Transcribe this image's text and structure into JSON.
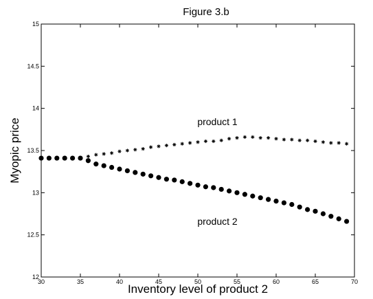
{
  "chart_data": {
    "type": "scatter",
    "title": "Figure 3.b",
    "xlabel": "Inventory level of product 2",
    "ylabel": "Myopic price",
    "xlim": [
      30,
      70
    ],
    "ylim": [
      12,
      15
    ],
    "xticks": [
      "30",
      "35",
      "40",
      "45",
      "50",
      "55",
      "60",
      "65",
      "70"
    ],
    "yticks": [
      "12",
      "12.5",
      "13",
      "13.5",
      "14",
      "14.5",
      "15"
    ],
    "grid": false,
    "annotations": [
      {
        "text": "product 1",
        "x": 52.5,
        "y": 13.8
      },
      {
        "text": "product 2",
        "x": 52.5,
        "y": 12.62
      }
    ],
    "series": [
      {
        "name": "product 1",
        "marker": "star",
        "x": [
          30,
          31,
          32,
          33,
          34,
          35,
          36,
          37,
          38,
          39,
          40,
          41,
          42,
          43,
          44,
          45,
          46,
          47,
          48,
          49,
          50,
          51,
          52,
          53,
          54,
          55,
          56,
          57,
          58,
          59,
          60,
          61,
          62,
          63,
          64,
          65,
          66,
          67,
          68,
          69
        ],
        "y": [
          13.41,
          13.41,
          13.41,
          13.41,
          13.41,
          13.41,
          13.43,
          13.45,
          13.46,
          13.47,
          13.49,
          13.5,
          13.51,
          13.52,
          13.54,
          13.55,
          13.56,
          13.57,
          13.58,
          13.59,
          13.6,
          13.61,
          13.61,
          13.62,
          13.64,
          13.65,
          13.66,
          13.66,
          13.65,
          13.65,
          13.64,
          13.63,
          13.63,
          13.62,
          13.62,
          13.61,
          13.6,
          13.59,
          13.59,
          13.58
        ]
      },
      {
        "name": "product 2",
        "marker": "dot",
        "x": [
          30,
          31,
          32,
          33,
          34,
          35,
          36,
          37,
          38,
          39,
          40,
          41,
          42,
          43,
          44,
          45,
          46,
          47,
          48,
          49,
          50,
          51,
          52,
          53,
          54,
          55,
          56,
          57,
          58,
          59,
          60,
          61,
          62,
          63,
          64,
          65,
          66,
          67,
          68,
          69
        ],
        "y": [
          13.41,
          13.41,
          13.41,
          13.41,
          13.41,
          13.41,
          13.38,
          13.34,
          13.32,
          13.3,
          13.28,
          13.26,
          13.24,
          13.22,
          13.2,
          13.18,
          13.16,
          13.15,
          13.13,
          13.11,
          13.09,
          13.07,
          13.06,
          13.04,
          13.02,
          13.0,
          12.98,
          12.96,
          12.94,
          12.92,
          12.9,
          12.88,
          12.86,
          12.83,
          12.8,
          12.78,
          12.75,
          12.72,
          12.69,
          12.66
        ]
      }
    ]
  }
}
